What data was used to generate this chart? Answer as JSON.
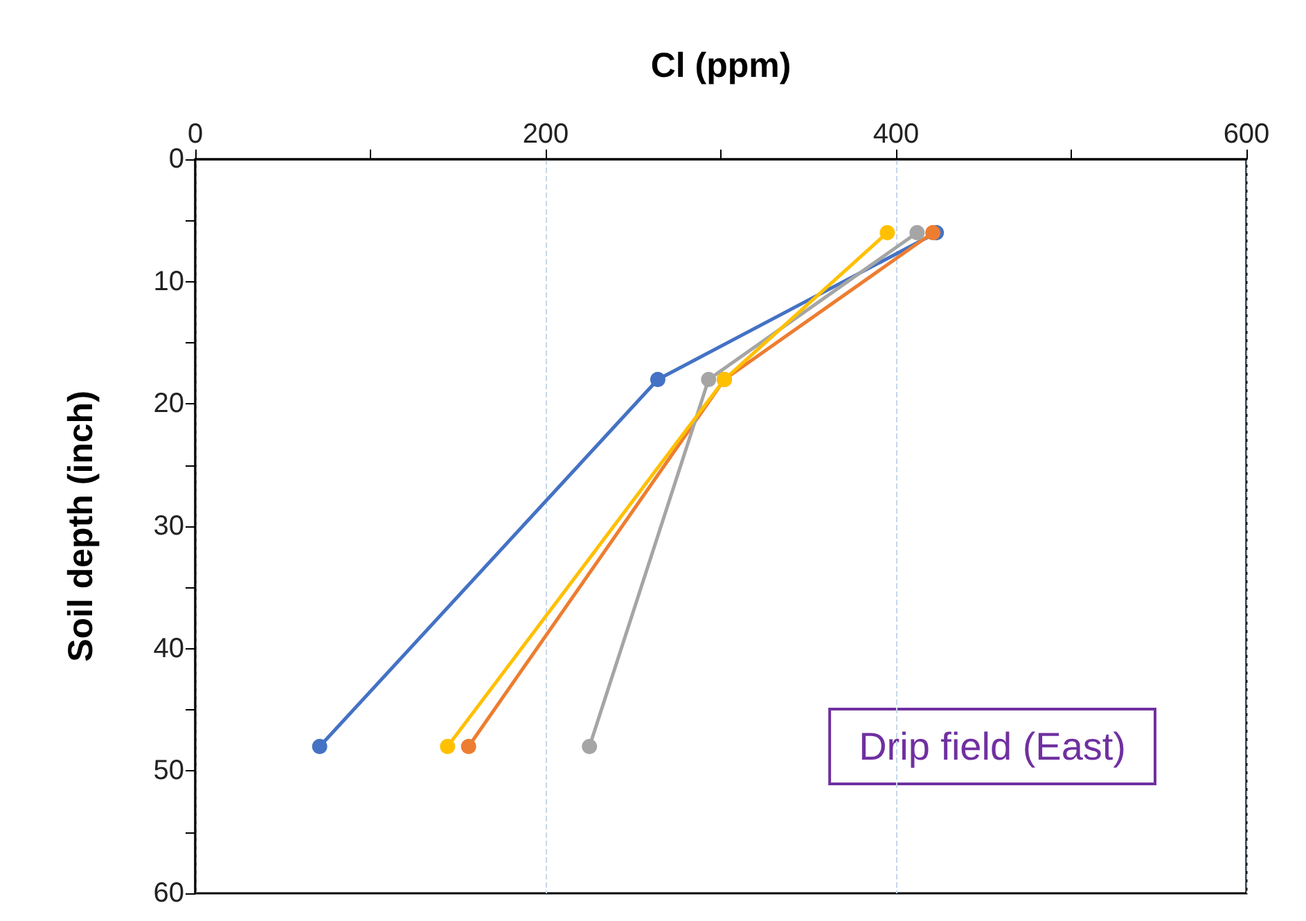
{
  "chart_data": {
    "type": "line",
    "xlabel": "Cl (ppm)",
    "ylabel": "Soil depth (inch)",
    "xlim": [
      0,
      600
    ],
    "xticks": [
      0,
      {
        "value": 100,
        "label": null
      },
      200,
      {
        "value": 300,
        "label": null
      },
      400,
      {
        "value": 500,
        "label": null
      },
      600
    ],
    "ylim": [
      60,
      0
    ],
    "yticks": [
      0,
      {
        "value": 5,
        "label": null
      },
      10,
      {
        "value": 15,
        "label": null
      },
      20,
      {
        "value": 25,
        "label": null
      },
      30,
      {
        "value": 35,
        "label": null
      },
      40,
      {
        "value": 45,
        "label": null
      },
      50,
      {
        "value": 55,
        "label": null
      },
      60
    ],
    "grid": "x",
    "marker": "circle",
    "line_style": "solid",
    "annotations": [
      "Drip field (East)"
    ],
    "series": [
      {
        "color": "#4472c4",
        "x": [
          423,
          264,
          71
        ],
        "values": [
          6,
          18,
          48
        ]
      },
      {
        "color": "#ed7d31",
        "x": [
          421,
          302,
          156
        ],
        "values": [
          6,
          18,
          48
        ]
      },
      {
        "color": "#a5a5a5",
        "x": [
          412,
          293,
          225
        ],
        "values": [
          6,
          18,
          48
        ]
      },
      {
        "color": "#ffc000",
        "x": [
          395,
          302,
          144
        ],
        "values": [
          6,
          18,
          48
        ]
      }
    ]
  }
}
